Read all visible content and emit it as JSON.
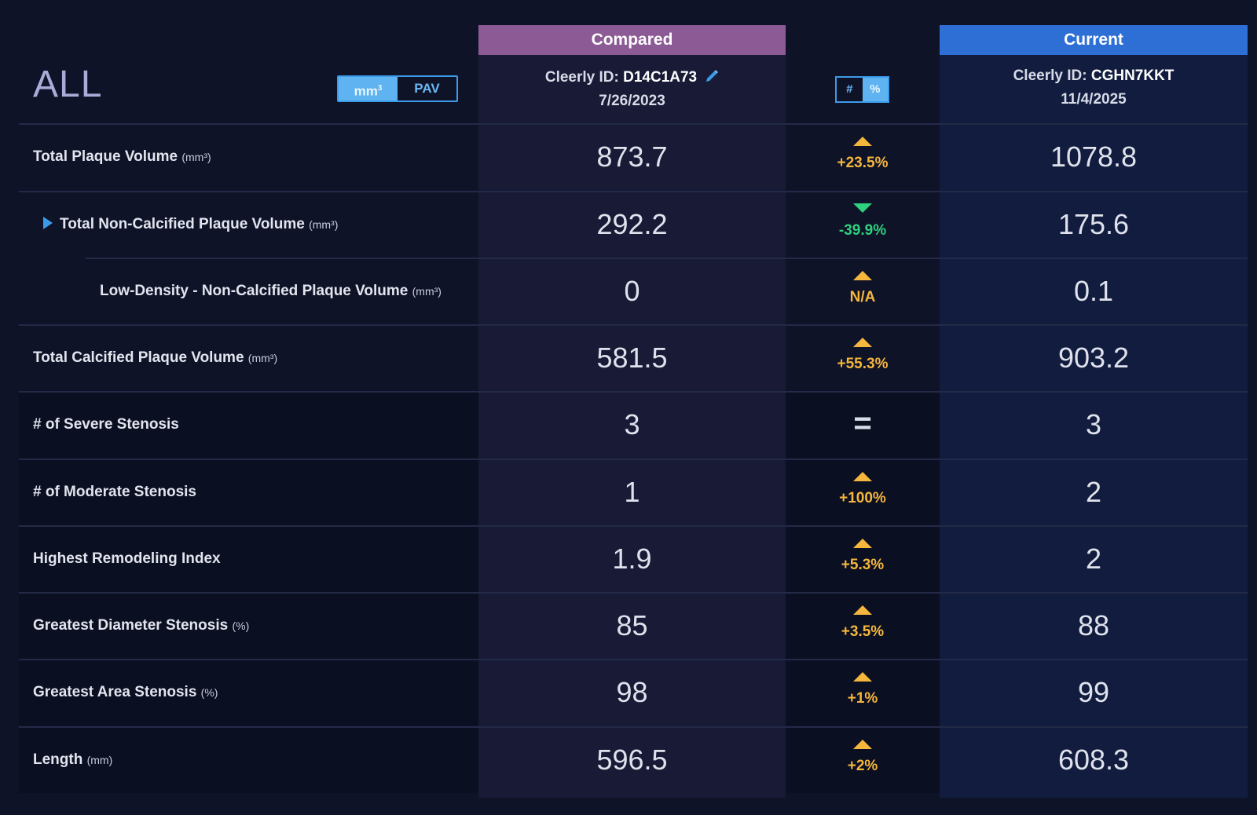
{
  "header": {
    "title": "ALL",
    "unit_toggle": {
      "options": [
        "mm³",
        "PAV"
      ],
      "selected": "mm³",
      "mm_base": "mm",
      "mm_sup": "3"
    },
    "format_toggle": {
      "options": [
        "#",
        "%"
      ],
      "selected": "%"
    }
  },
  "compared": {
    "label": "Compared",
    "id_label": "Cleerly ID: ",
    "id_value": "D14C1A73",
    "date": "7/26/2023",
    "edit_icon": "pencil-icon",
    "color": "#8c5a95"
  },
  "current": {
    "label": "Current",
    "id_label": "Cleerly ID: ",
    "id_value": "CGHN7KKT",
    "date": "11/4/2025",
    "color": "#2e6fd6"
  },
  "colors": {
    "increase": "#f4b63d",
    "decrease": "#2fd07e"
  },
  "rows": [
    {
      "label": "Total Plaque Volume",
      "unit": "(mm³)",
      "compared": "873.7",
      "direction": "up",
      "change": "+23.5%",
      "current": "1078.8"
    },
    {
      "label": "Total Non-Calcified Plaque Volume",
      "unit": "(mm³)",
      "compared": "292.2",
      "direction": "down",
      "change": "-39.9%",
      "current": "175.6"
    },
    {
      "label": "Low-Density - Non-Calcified Plaque Volume",
      "unit": "(mm³)",
      "compared": "0",
      "direction": "up",
      "change": "N/A",
      "current": "0.1"
    },
    {
      "label": "Total Calcified Plaque Volume",
      "unit": "(mm³)",
      "compared": "581.5",
      "direction": "up",
      "change": "+55.3%",
      "current": "903.2"
    },
    {
      "label": "# of Severe Stenosis",
      "unit": "",
      "compared": "3",
      "direction": "equal",
      "change": "=",
      "current": "3"
    },
    {
      "label": "# of Moderate Stenosis",
      "unit": "",
      "compared": "1",
      "direction": "up",
      "change": "+100%",
      "current": "2"
    },
    {
      "label": "Highest Remodeling Index",
      "unit": "",
      "compared": "1.9",
      "direction": "up",
      "change": "+5.3%",
      "current": "2"
    },
    {
      "label": "Greatest Diameter Stenosis",
      "unit": "(%)",
      "compared": "85",
      "direction": "up",
      "change": "+3.5%",
      "current": "88"
    },
    {
      "label": "Greatest Area Stenosis",
      "unit": "(%)",
      "compared": "98",
      "direction": "up",
      "change": "+1%",
      "current": "99"
    },
    {
      "label": "Length",
      "unit": "(mm)",
      "compared": "596.5",
      "direction": "up",
      "change": "+2%",
      "current": "608.3"
    }
  ]
}
